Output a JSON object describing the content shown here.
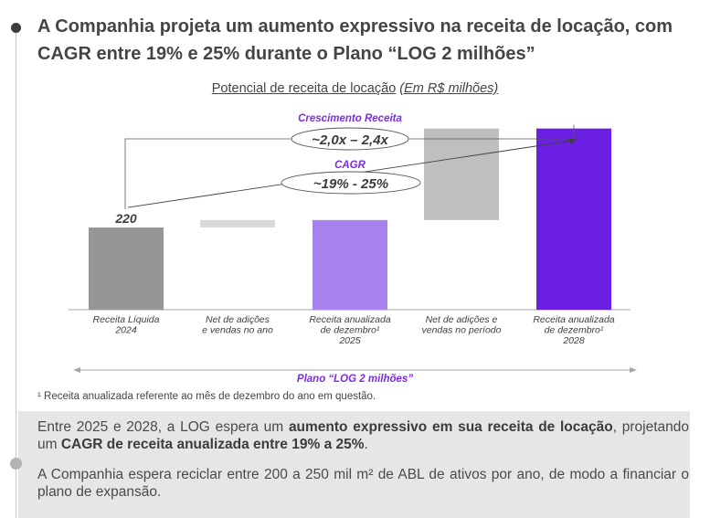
{
  "headline": "A Companhia projeta um aumento expressivo na receita de locação, com CAGR entre 19% e 25% durante o Plano “LOG 2 milhões”",
  "chart_title": {
    "text": "Potencial de receita de locação",
    "unit": "(Em R$ milhões)"
  },
  "chart_data": {
    "type": "bar",
    "title": "Potencial de receita de locação (Em R$ milhões)",
    "categories": [
      [
        "Receita Líquida",
        "2024"
      ],
      [
        "Net de adições",
        "e vendas no ano"
      ],
      [
        "Receita anualizada",
        "de dezembro¹",
        "2025"
      ],
      [
        "Net de adições e",
        "vendas no período"
      ],
      [
        "Receita anualizada",
        "de dezembro¹",
        "2028"
      ]
    ],
    "bars": [
      {
        "base": 0,
        "top": 220,
        "color": "#969696",
        "label": "220"
      },
      {
        "base": 220,
        "top": 240,
        "color": "#d9d9d9",
        "label": ""
      },
      {
        "base": 0,
        "top": 240,
        "color": "#a782ec",
        "label": ""
      },
      {
        "base": 240,
        "top": 485,
        "color": "#bfbfbf",
        "label": ""
      },
      {
        "base": 0,
        "top": 485,
        "color": "#6a1fe3",
        "label": ""
      }
    ],
    "ylim": [
      0,
      560
    ],
    "annotations": {
      "growth_title": "Crescimento Receita",
      "growth_value": "~2,0x – 2,4x",
      "cagr_title": "CAGR",
      "cagr_value": "~19% - 25%"
    },
    "accent_color": "#7b2fe0"
  },
  "plano_label": "Plano “LOG 2 milhões”",
  "footnote": "¹ Receita anualizada referente ao mês de dezembro do ano em questão.",
  "para1": {
    "a": "Entre 2025 e 2028, a LOG espera um ",
    "b": "aumento expressivo em sua receita de locação",
    "c": ", projetando um ",
    "d": "CAGR de receita anualizada entre 19% a 25%",
    "e": "."
  },
  "para2": "A Companhia espera reciclar entre 200 a 250 mil m² de ABL de ativos por ano, de modo a financiar o plano de expansão."
}
